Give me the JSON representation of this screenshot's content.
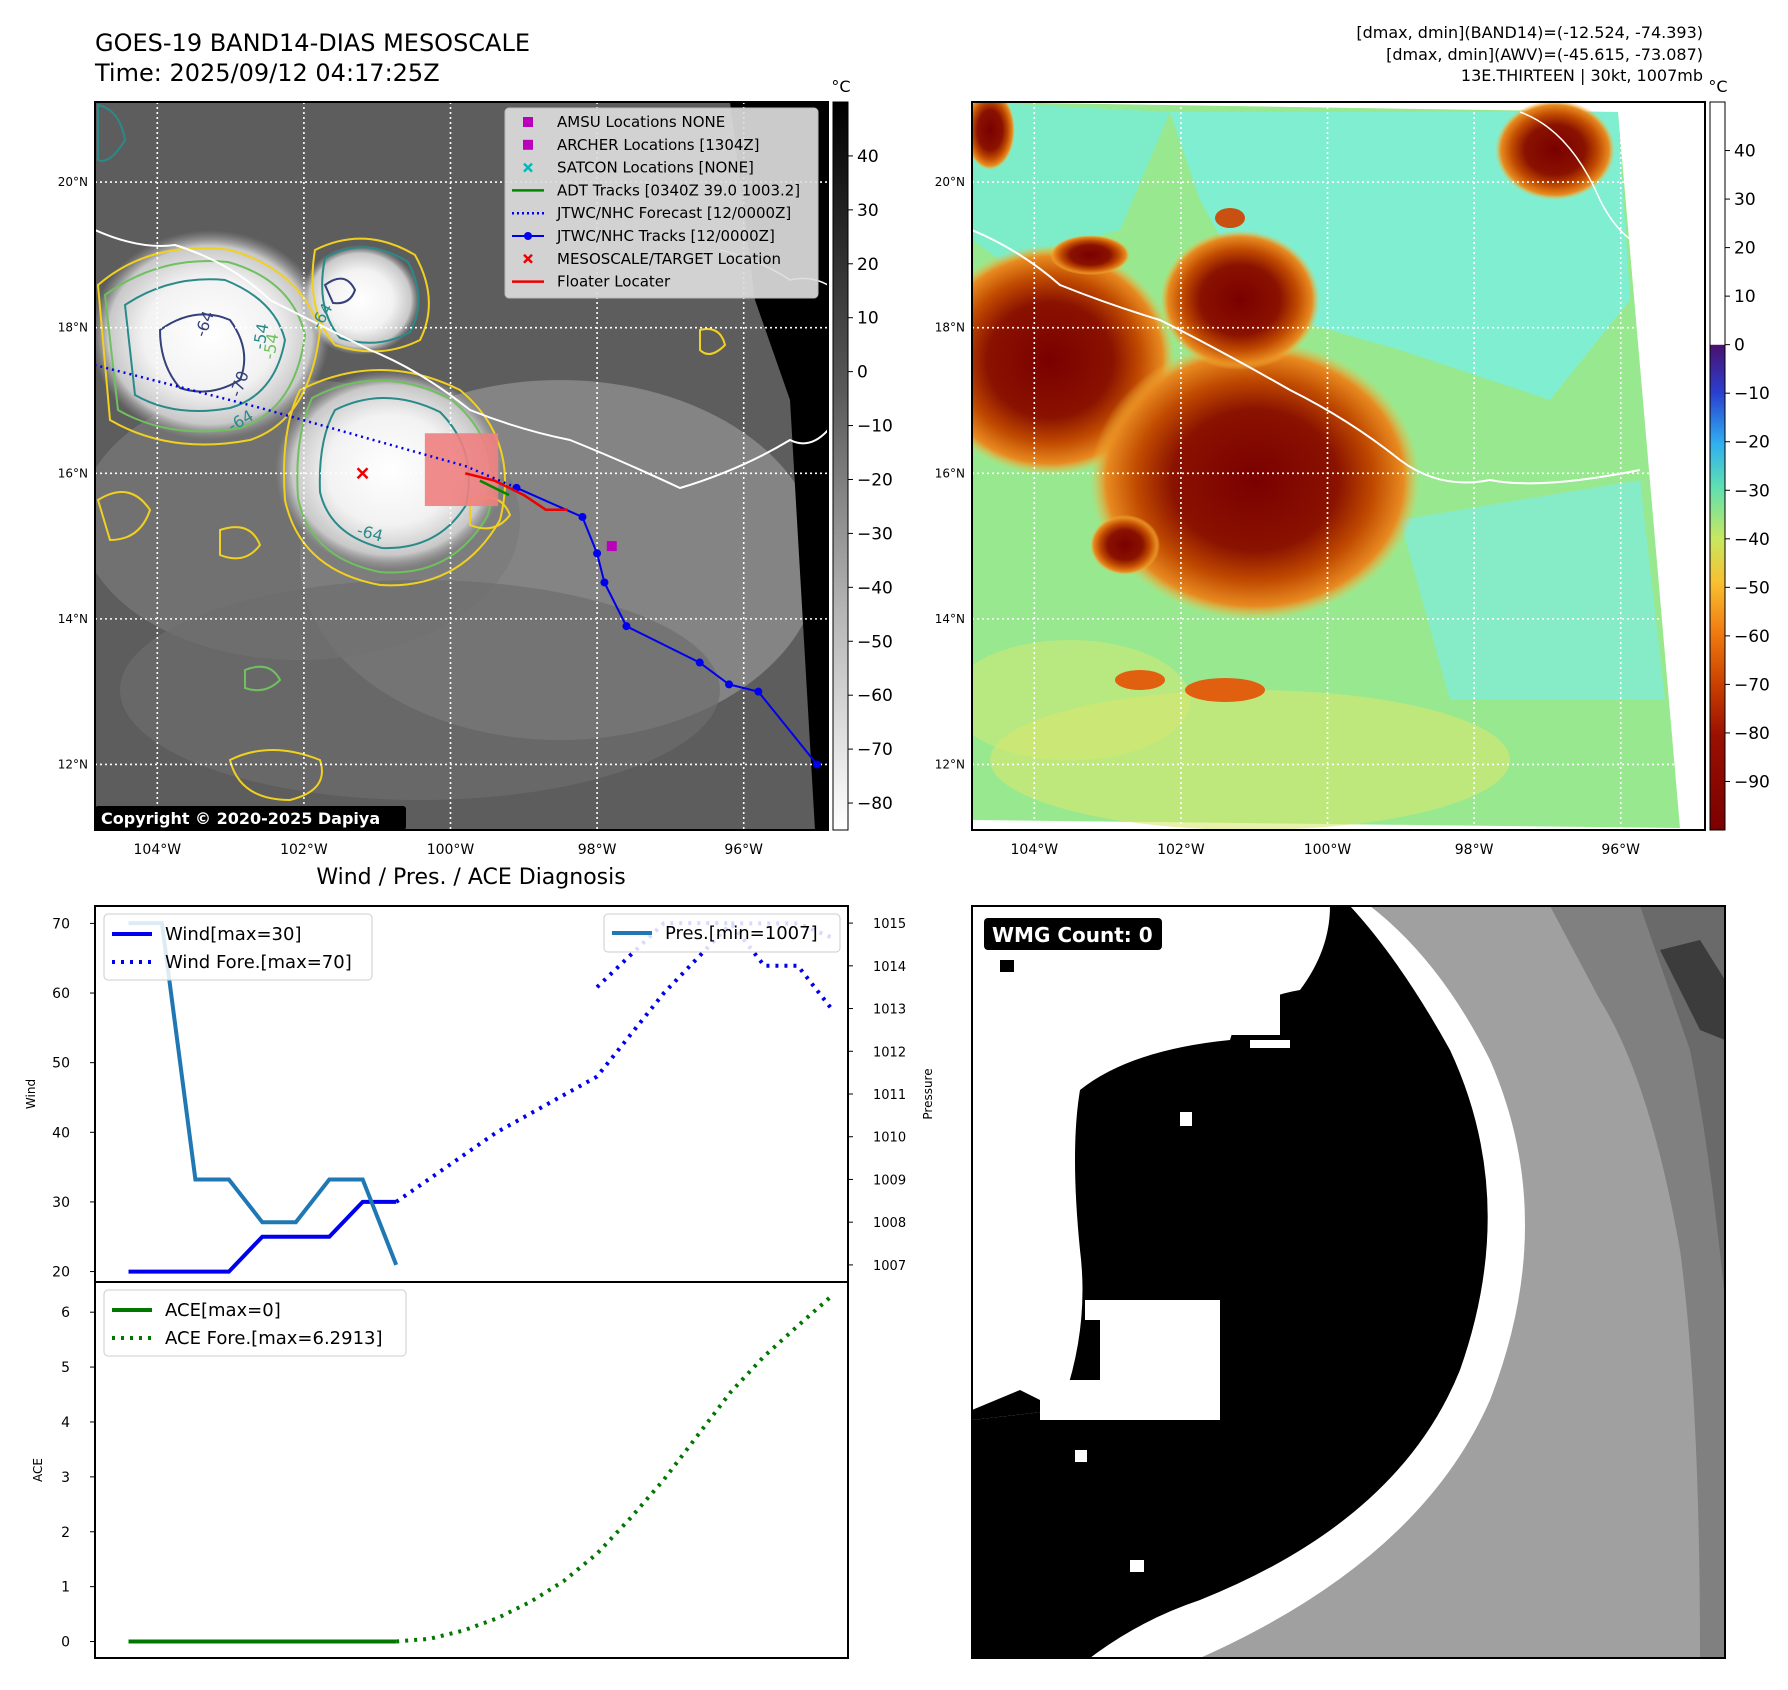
{
  "header": {
    "title_line1": "GOES-19 BAND14-DIAS MESOSCALE",
    "title_line2": "Time: 2025/09/12 04:17:25Z",
    "right_line1": "[dmax, dmin](BAND14)=(-12.524, -74.393)",
    "right_line2": "[dmax, dmin](AWV)=(-45.615, -73.087)",
    "right_line3": "13E.THIRTEEN | 30kt, 1007mb"
  },
  "colors": {
    "wind": "#0000ee",
    "pressure": "#1f77b4",
    "ace": "#007700",
    "track": "#0000ee",
    "floater": "#ee0000",
    "adt": "#008800",
    "contour_yellow": "#f0d020",
    "contour_green": "#70c060",
    "contour_teal": "#2a8a8a",
    "contour_navy": "#34407a"
  },
  "map_axes": {
    "lat_labels": [
      "20°N",
      "18°N",
      "16°N",
      "14°N",
      "12°N"
    ],
    "lon_labels": [
      "104°W",
      "102°W",
      "100°W",
      "98°W",
      "96°W"
    ],
    "lat_values": [
      20,
      18,
      16,
      14,
      12
    ],
    "lon_values": [
      -104,
      -102,
      -100,
      -98,
      -96
    ],
    "lat_range": [
      11.1,
      21.1
    ],
    "lon_range": [
      -104.85,
      -94.85
    ]
  },
  "ir_panel": {
    "colorbar_unit": "°C",
    "colorbar_ticks": [
      "40",
      "30",
      "20",
      "10",
      "0",
      "−10",
      "−20",
      "−30",
      "−40",
      "−50",
      "−60",
      "−70",
      "−80"
    ],
    "colorbar_values": [
      40,
      30,
      20,
      10,
      0,
      -10,
      -20,
      -30,
      -40,
      -50,
      -60,
      -70,
      -80
    ],
    "colorbar_range": [
      -85,
      50
    ],
    "copyright": "Copyright © 2020-2025 Dapiya",
    "contour_labels": [
      "-54",
      "-64",
      "-64",
      "-64",
      "-64",
      "-54",
      "-70"
    ],
    "legend": [
      {
        "label": "AMSU Locations NONE",
        "marker": "square",
        "color": "#bb00bb"
      },
      {
        "label": "ARCHER Locations [1304Z]",
        "marker": "square",
        "color": "#bb00bb"
      },
      {
        "label": "SATCON Locations [NONE]",
        "marker": "x",
        "color": "#00bbbb"
      },
      {
        "label": "ADT Tracks [0340Z 39.0 1003.2]",
        "marker": "line",
        "color": "#008800"
      },
      {
        "label": "JTWC/NHC Forecast [12/0000Z]",
        "marker": "dotted",
        "color": "#0000ee"
      },
      {
        "label": "JTWC/NHC Tracks [12/0000Z]",
        "marker": "line-dot",
        "color": "#0000ee"
      },
      {
        "label": "MESOSCALE/TARGET Location",
        "marker": "x",
        "color": "#ee0000"
      },
      {
        "label": "Floater Locater",
        "marker": "line",
        "color": "#ee0000"
      }
    ],
    "jtwc_track": [
      [
        12.0,
        -95.0
      ],
      [
        13.0,
        -95.8
      ],
      [
        13.1,
        -96.2
      ],
      [
        13.4,
        -96.6
      ],
      [
        13.9,
        -97.6
      ],
      [
        14.5,
        -97.9
      ],
      [
        14.9,
        -98.0
      ],
      [
        15.4,
        -98.2
      ],
      [
        15.8,
        -99.1
      ]
    ],
    "forecast_track": [
      [
        15.8,
        -99.1
      ],
      [
        16.1,
        -99.8
      ],
      [
        16.5,
        -101.2
      ],
      [
        16.9,
        -102.6
      ],
      [
        17.5,
        -104.9
      ]
    ],
    "floater_track": [
      [
        15.5,
        -98.4
      ],
      [
        15.5,
        -98.7
      ],
      [
        15.7,
        -99.0
      ],
      [
        15.9,
        -99.4
      ],
      [
        16.0,
        -99.8
      ]
    ],
    "adt_track": [
      [
        15.7,
        -99.2
      ],
      [
        15.9,
        -99.6
      ]
    ],
    "archer_location": [
      15.0,
      -97.8
    ],
    "target_location": [
      16.0,
      -101.2
    ],
    "floater_box": {
      "lat_min": 15.55,
      "lat_max": 16.55,
      "lon_min": -100.35,
      "lon_max": -99.35
    }
  },
  "awv_panel": {
    "colorbar_unit": "°C",
    "colorbar_ticks": [
      "40",
      "30",
      "20",
      "10",
      "0",
      "−10",
      "−20",
      "−30",
      "−40",
      "−50",
      "−60",
      "−70",
      "−80",
      "−90"
    ],
    "colorbar_values": [
      40,
      30,
      20,
      10,
      0,
      -10,
      -20,
      -30,
      -40,
      -50,
      -60,
      -70,
      -80,
      -90
    ],
    "colorbar_range": [
      -100,
      50
    ]
  },
  "chart_data": [
    {
      "type": "line",
      "title": "Wind / Pres. / ACE Diagnosis",
      "ylabel": "Wind",
      "ylabel_right": "Pressure",
      "ylim": [
        18.5,
        72.5
      ],
      "ylim_right": [
        1006.6,
        1015.4
      ],
      "yticks": [
        20,
        30,
        40,
        50,
        60,
        70
      ],
      "yticks_right": [
        1007,
        1008,
        1009,
        1010,
        1011,
        1012,
        1013,
        1014,
        1015
      ],
      "xlim": [
        0,
        22.5
      ],
      "series": [
        {
          "name": "Wind[max=30]",
          "axis": "left",
          "style": "solid",
          "x": [
            1,
            2,
            3,
            4,
            5,
            6,
            7,
            8,
            9
          ],
          "y": [
            20,
            20,
            20,
            20,
            25,
            25,
            25,
            30,
            30
          ]
        },
        {
          "name": "Wind Fore.[max=70]",
          "axis": "left",
          "style": "dotted",
          "x": [
            9,
            12,
            15,
            17,
            19,
            21,
            22
          ],
          "y": [
            30,
            40,
            48,
            60,
            70,
            70,
            68
          ]
        },
        {
          "name": "Pres.[min=1007]",
          "axis": "right",
          "style": "solid",
          "x": [
            1,
            2,
            3,
            4,
            5,
            6,
            7,
            8,
            9
          ],
          "y": [
            1015,
            1015,
            1009,
            1009,
            1008,
            1008,
            1009,
            1009,
            1007
          ]
        },
        {
          "name": "",
          "axis": "right",
          "style": "dotted",
          "color": "#0000ee",
          "x": [
            15,
            17,
            19,
            20,
            21,
            22
          ],
          "y": [
            1013.5,
            1015,
            1015,
            1014,
            1014,
            1013
          ]
        }
      ]
    },
    {
      "type": "line",
      "ylabel": "ACE",
      "ylim": [
        -0.3,
        6.55
      ],
      "yticks": [
        0,
        1,
        2,
        3,
        4,
        5,
        6
      ],
      "xlim": [
        0,
        22.5
      ],
      "series": [
        {
          "name": "ACE[max=0]",
          "style": "solid",
          "x": [
            1,
            3,
            5,
            7,
            9
          ],
          "y": [
            0,
            0,
            0,
            0,
            0
          ]
        },
        {
          "name": "ACE Fore.[max=6.2913]",
          "style": "dotted",
          "x": [
            9,
            10,
            11,
            12,
            13,
            14,
            15,
            16,
            17,
            18,
            19,
            20,
            21,
            22
          ],
          "y": [
            0,
            0.05,
            0.2,
            0.42,
            0.72,
            1.1,
            1.6,
            2.25,
            2.95,
            3.75,
            4.55,
            5.2,
            5.75,
            6.2913
          ]
        }
      ]
    }
  ],
  "wmg_panel": {
    "label": "WMG Count: 0"
  }
}
